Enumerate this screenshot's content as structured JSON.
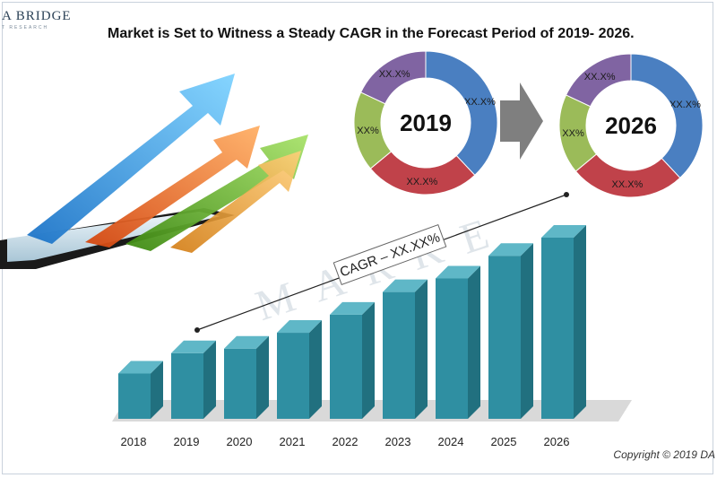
{
  "logo": {
    "main": "A BRIDGE",
    "sub": "T RESEARCH"
  },
  "title": "Market is Set to Witness a Steady CAGR in the Forecast Period of 2019- 2026.",
  "watermark": "MARKE",
  "copyright": "Copyright © 2019 DA",
  "colors": {
    "bar": "#2f8fa2",
    "bar_top": "#5fb7c7",
    "bar_side": "#21707f",
    "donut_blue": "#4a7fc1",
    "donut_red": "#c0424a",
    "donut_green": "#9bbb59",
    "donut_purple": "#8064a2",
    "arrow": "#7f7f7f"
  },
  "chart_data": [
    {
      "type": "bar",
      "categories": [
        "2018",
        "2019",
        "2020",
        "2021",
        "2022",
        "2023",
        "2024",
        "2025",
        "2026"
      ],
      "values": [
        1.0,
        1.45,
        1.55,
        1.9,
        2.3,
        2.8,
        3.1,
        3.6,
        4.0
      ],
      "annotation": "CAGR – XX.XX%",
      "grid": false
    },
    {
      "type": "pie",
      "center_label": "2019",
      "slices": [
        {
          "label": "XX.X%",
          "value": 38,
          "color": "#4a7fc1"
        },
        {
          "label": "XX.X%",
          "value": 26,
          "color": "#c0424a"
        },
        {
          "label": "XX%",
          "value": 18,
          "color": "#9bbb59"
        },
        {
          "label": "XX.X%",
          "value": 18,
          "color": "#8064a2"
        }
      ]
    },
    {
      "type": "pie",
      "center_label": "2026",
      "slices": [
        {
          "label": "XX.X%",
          "value": 38,
          "color": "#4a7fc1"
        },
        {
          "label": "XX.X%",
          "value": 26,
          "color": "#c0424a"
        },
        {
          "label": "XX%",
          "value": 18,
          "color": "#9bbb59"
        },
        {
          "label": "XX.X%",
          "value": 18,
          "color": "#8064a2"
        }
      ]
    }
  ]
}
